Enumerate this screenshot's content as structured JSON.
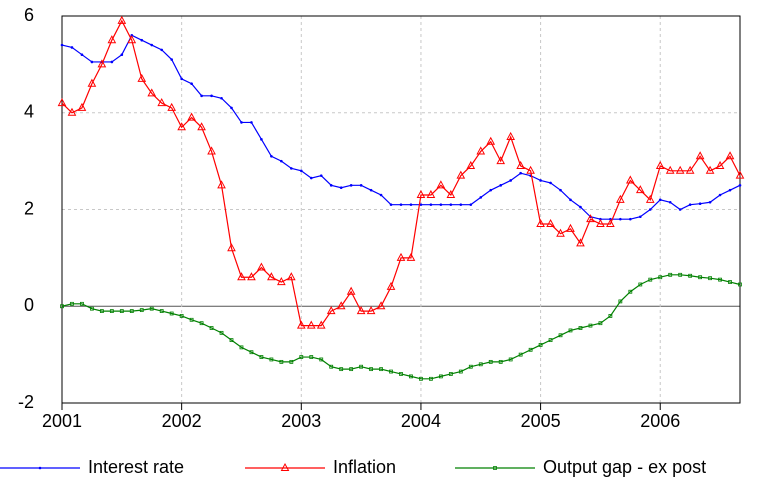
{
  "chart_data": {
    "type": "line",
    "categories": [
      "2001",
      null,
      null,
      null,
      null,
      null,
      null,
      null,
      null,
      null,
      null,
      null,
      "2002",
      null,
      null,
      null,
      null,
      null,
      null,
      null,
      null,
      null,
      null,
      null,
      "2003",
      null,
      null,
      null,
      null,
      null,
      null,
      null,
      null,
      null,
      null,
      null,
      "2004",
      null,
      null,
      null,
      null,
      null,
      null,
      null,
      null,
      null,
      null,
      null,
      "2005",
      null,
      null,
      null,
      null,
      null,
      null,
      null,
      null,
      null,
      null,
      null,
      "2006",
      null,
      null,
      null,
      null,
      null,
      null,
      null,
      null
    ],
    "series": [
      {
        "name": "Interest rate",
        "color": "#0000ff",
        "marker": "dot",
        "values": [
          5.4,
          5.35,
          5.2,
          5.05,
          5.05,
          5.05,
          5.2,
          5.6,
          5.5,
          5.4,
          5.3,
          5.1,
          4.7,
          4.6,
          4.35,
          4.35,
          4.3,
          4.1,
          3.8,
          3.8,
          3.45,
          3.1,
          3.0,
          2.85,
          2.8,
          2.65,
          2.7,
          2.5,
          2.45,
          2.5,
          2.5,
          2.4,
          2.3,
          2.1,
          2.1,
          2.1,
          2.1,
          2.1,
          2.1,
          2.1,
          2.1,
          2.1,
          2.25,
          2.4,
          2.5,
          2.6,
          2.75,
          2.7,
          2.6,
          2.55,
          2.4,
          2.2,
          2.05,
          1.85,
          1.8,
          1.8,
          1.8,
          1.8,
          1.85,
          2.0,
          2.2,
          2.15,
          2.0,
          2.1,
          2.12,
          2.15,
          2.3,
          2.4,
          2.5
        ]
      },
      {
        "name": "Inflation",
        "color": "#ff0000",
        "marker": "triangle",
        "values": [
          4.2,
          4.0,
          4.1,
          4.6,
          5.0,
          5.5,
          5.9,
          5.5,
          4.7,
          4.4,
          4.2,
          4.1,
          3.7,
          3.9,
          3.7,
          3.2,
          2.5,
          1.2,
          0.6,
          0.6,
          0.8,
          0.6,
          0.5,
          0.6,
          -0.4,
          -0.4,
          -0.4,
          -0.1,
          0.0,
          0.3,
          -0.1,
          -0.1,
          0.0,
          0.4,
          1.0,
          1.0,
          2.3,
          2.3,
          2.5,
          2.3,
          2.7,
          2.9,
          3.2,
          3.4,
          3.0,
          3.5,
          2.9,
          2.8,
          1.7,
          1.7,
          1.5,
          1.6,
          1.3,
          1.8,
          1.7,
          1.7,
          2.2,
          2.6,
          2.4,
          2.2,
          2.9,
          2.8,
          2.8,
          2.8,
          3.1,
          2.8,
          2.9,
          3.1,
          2.7
        ]
      },
      {
        "name": "Output gap - ex post",
        "color": "#008000",
        "marker": "square",
        "values": [
          0.0,
          0.05,
          0.05,
          -0.05,
          -0.1,
          -0.1,
          -0.1,
          -0.1,
          -0.08,
          -0.05,
          -0.1,
          -0.15,
          -0.2,
          -0.28,
          -0.35,
          -0.45,
          -0.55,
          -0.7,
          -0.85,
          -0.95,
          -1.05,
          -1.1,
          -1.15,
          -1.15,
          -1.05,
          -1.05,
          -1.1,
          -1.25,
          -1.3,
          -1.3,
          -1.25,
          -1.3,
          -1.3,
          -1.35,
          -1.4,
          -1.45,
          -1.5,
          -1.5,
          -1.45,
          -1.4,
          -1.35,
          -1.25,
          -1.2,
          -1.15,
          -1.15,
          -1.1,
          -1.0,
          -0.9,
          -0.8,
          -0.7,
          -0.6,
          -0.5,
          -0.45,
          -0.4,
          -0.35,
          -0.2,
          0.1,
          0.3,
          0.45,
          0.55,
          0.6,
          0.65,
          0.65,
          0.63,
          0.6,
          0.58,
          0.55,
          0.5,
          0.45
        ]
      }
    ],
    "ylim": [
      -2,
      6
    ],
    "yticks": [
      -2,
      0,
      2,
      4,
      6
    ],
    "grid": true
  }
}
